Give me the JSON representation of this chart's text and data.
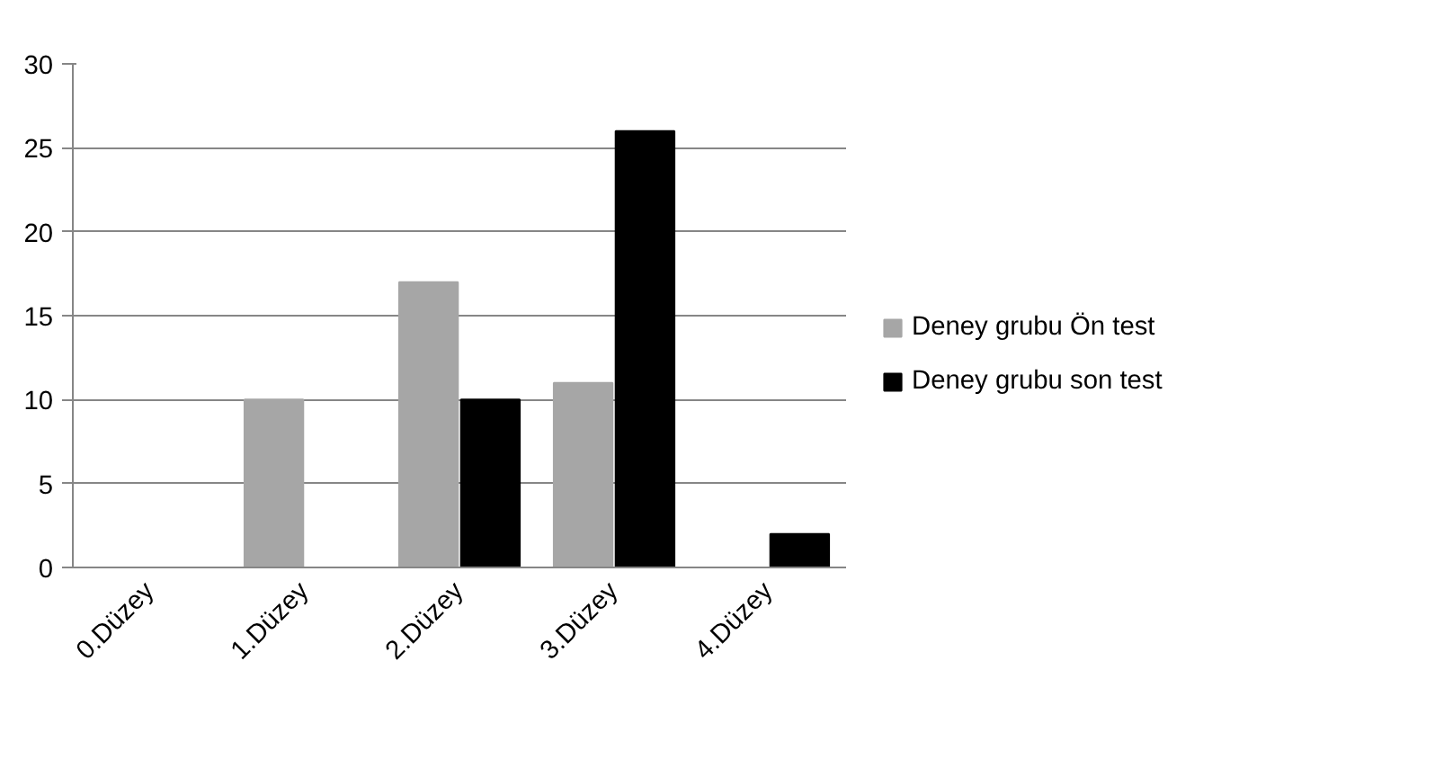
{
  "chart_data": {
    "type": "bar",
    "categories": [
      "0.Düzey",
      "1.Düzey",
      "2.Düzey",
      "3.Düzey",
      "4.Düzey"
    ],
    "series": [
      {
        "name": "Deney grubu Ön test",
        "color": "#a6a6a6",
        "values": [
          0,
          10,
          17,
          11,
          0
        ]
      },
      {
        "name": "Deney grubu son test",
        "color": "#000000",
        "values": [
          0,
          0,
          10,
          26,
          2
        ]
      }
    ],
    "ylim": [
      0,
      30
    ],
    "yticks": [
      0,
      5,
      10,
      15,
      20,
      25,
      30
    ],
    "grid": "y",
    "legend": "right"
  }
}
